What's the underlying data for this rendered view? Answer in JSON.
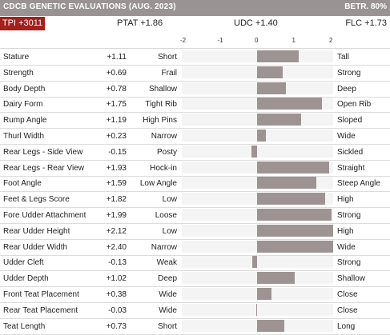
{
  "header": {
    "title": "CDCB GENETIC EVALUATIONS (AUG. 2023)",
    "reliability": "BETR. 80%"
  },
  "summary": {
    "tpi": "TPI +3011",
    "ptat": "PTAT +1.86",
    "udc": "UDC +1.40",
    "flc": "FLC +1.73"
  },
  "chart_data": {
    "type": "bar",
    "orientation": "horizontal",
    "xlim": [
      -2.2,
      2.2
    ],
    "ticks": [
      {
        "value": -2,
        "label": "-2"
      },
      {
        "value": -1,
        "label": "-1"
      },
      {
        "value": 0,
        "label": "0"
      },
      {
        "value": 1,
        "label": "1"
      },
      {
        "value": 2,
        "label": "2"
      }
    ],
    "rows": [
      {
        "trait": "Stature",
        "value": 1.11,
        "label": "+1.11",
        "low": "Short",
        "high": "Tall"
      },
      {
        "trait": "Strength",
        "value": 0.69,
        "label": "+0.69",
        "low": "Frail",
        "high": "Strong"
      },
      {
        "trait": "Body Depth",
        "value": 0.78,
        "label": "+0.78",
        "low": "Shallow",
        "high": "Deep"
      },
      {
        "trait": "Dairy Form",
        "value": 1.75,
        "label": "+1.75",
        "low": "Tight Rib",
        "high": "Open Rib"
      },
      {
        "trait": "Rump Angle",
        "value": 1.19,
        "label": "+1.19",
        "low": "High Pins",
        "high": "Sloped"
      },
      {
        "trait": "Thurl Width",
        "value": 0.23,
        "label": "+0.23",
        "low": "Narrow",
        "high": "Wide"
      },
      {
        "trait": "Rear Legs - Side View",
        "value": -0.15,
        "label": "-0.15",
        "low": "Posty",
        "high": "Sickled"
      },
      {
        "trait": "Rear Legs - Rear View",
        "value": 1.93,
        "label": "+1.93",
        "low": "Hock-in",
        "high": "Straight"
      },
      {
        "trait": "Foot Angle",
        "value": 1.59,
        "label": "+1.59",
        "low": "Low Angle",
        "high": "Steep Angle"
      },
      {
        "trait": "Feet & Legs Score",
        "value": 1.82,
        "label": "+1.82",
        "low": "Low",
        "high": "High"
      },
      {
        "trait": "Fore Udder Attachment",
        "value": 1.99,
        "label": "+1.99",
        "low": "Loose",
        "high": "Strong"
      },
      {
        "trait": "Rear Udder Height",
        "value": 2.12,
        "label": "+2.12",
        "low": "Low",
        "high": "High"
      },
      {
        "trait": "Rear Udder Width",
        "value": 2.4,
        "label": "+2.40",
        "low": "Narrow",
        "high": "Wide"
      },
      {
        "trait": "Udder Cleft",
        "value": -0.13,
        "label": "-0.13",
        "low": "Weak",
        "high": "Strong"
      },
      {
        "trait": "Udder Depth",
        "value": 1.02,
        "label": "+1.02",
        "low": "Deep",
        "high": "Shallow"
      },
      {
        "trait": "Front Teat Placement",
        "value": 0.38,
        "label": "+0.38",
        "low": "Wide",
        "high": "Close"
      },
      {
        "trait": "Rear Teat Placement",
        "value": -0.03,
        "label": "-0.03",
        "low": "Wide",
        "high": "Close"
      },
      {
        "trait": "Teat Length",
        "value": 0.73,
        "label": "+0.73",
        "low": "Short",
        "high": "Long"
      }
    ]
  }
}
